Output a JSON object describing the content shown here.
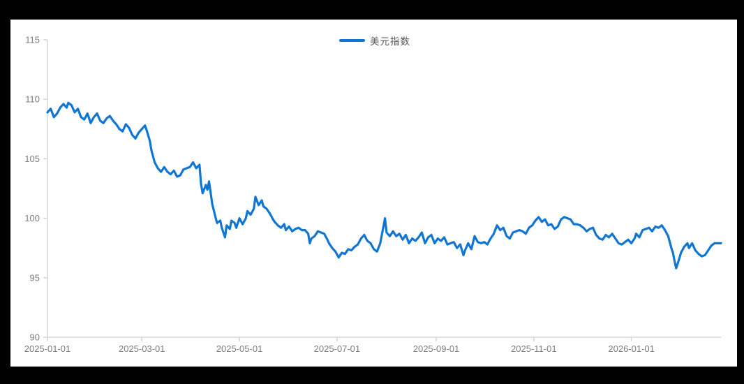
{
  "frame": {
    "background_color": "#000000",
    "panel_background": "#ffffff"
  },
  "chart_data": {
    "type": "line",
    "title": "",
    "legend": [
      {
        "label": "美元指数",
        "color": "#1175D2"
      }
    ],
    "legend_position": "top-center",
    "grid": false,
    "ylabel": "",
    "xlabel": "",
    "ylim": [
      90,
      115
    ],
    "y_ticks": [
      115,
      110,
      105,
      100,
      95,
      90
    ],
    "x_tick_labels": [
      "2025-01-01",
      "2025-03-01",
      "2025-05-01",
      "2025-07-01",
      "2025-09-01",
      "2025-11-01",
      "2026-01-01"
    ],
    "x_tick_days": [
      0,
      59,
      120,
      181,
      243,
      304,
      365
    ],
    "x_range_days": [
      0,
      421
    ],
    "x_unit": "days since 2025-01-01",
    "axis_color": "#d6d6d6",
    "tick_label_color": "#7d7d7d",
    "series": [
      {
        "name": "美元指数",
        "color": "#1175D2",
        "points": [
          [
            0,
            108.9
          ],
          [
            2,
            109.2
          ],
          [
            4,
            108.5
          ],
          [
            6,
            108.8
          ],
          [
            8,
            109.3
          ],
          [
            10,
            109.6
          ],
          [
            12,
            109.3
          ],
          [
            13,
            109.7
          ],
          [
            15,
            109.5
          ],
          [
            17,
            108.9
          ],
          [
            19,
            109.2
          ],
          [
            21,
            108.5
          ],
          [
            23,
            108.3
          ],
          [
            25,
            108.8
          ],
          [
            27,
            108.0
          ],
          [
            29,
            108.5
          ],
          [
            31,
            108.8
          ],
          [
            33,
            108.2
          ],
          [
            35,
            108.0
          ],
          [
            37,
            108.4
          ],
          [
            39,
            108.6
          ],
          [
            41,
            108.2
          ],
          [
            43,
            107.9
          ],
          [
            45,
            107.5
          ],
          [
            47,
            107.3
          ],
          [
            49,
            107.9
          ],
          [
            51,
            107.6
          ],
          [
            53,
            107.0
          ],
          [
            55,
            106.7
          ],
          [
            57,
            107.2
          ],
          [
            59,
            107.5
          ],
          [
            61,
            107.8
          ],
          [
            62,
            107.4
          ],
          [
            64,
            106.5
          ],
          [
            65,
            105.7
          ],
          [
            67,
            104.7
          ],
          [
            69,
            104.2
          ],
          [
            71,
            103.9
          ],
          [
            73,
            104.3
          ],
          [
            75,
            103.9
          ],
          [
            77,
            103.7
          ],
          [
            79,
            104.0
          ],
          [
            81,
            103.5
          ],
          [
            83,
            103.6
          ],
          [
            85,
            104.1
          ],
          [
            87,
            104.2
          ],
          [
            89,
            104.3
          ],
          [
            91,
            104.7
          ],
          [
            93,
            104.2
          ],
          [
            95,
            104.5
          ],
          [
            96,
            102.9
          ],
          [
            97,
            102.1
          ],
          [
            99,
            102.8
          ],
          [
            100,
            102.4
          ],
          [
            101,
            103.1
          ],
          [
            103,
            101.2
          ],
          [
            105,
            100.1
          ],
          [
            106,
            99.6
          ],
          [
            108,
            99.8
          ],
          [
            109,
            99.2
          ],
          [
            111,
            98.4
          ],
          [
            112,
            99.4
          ],
          [
            114,
            99.1
          ],
          [
            115,
            99.8
          ],
          [
            117,
            99.6
          ],
          [
            118,
            99.2
          ],
          [
            120,
            100.0
          ],
          [
            122,
            99.5
          ],
          [
            124,
            100.0
          ],
          [
            125,
            100.6
          ],
          [
            127,
            100.3
          ],
          [
            129,
            100.8
          ],
          [
            130,
            101.8
          ],
          [
            132,
            101.1
          ],
          [
            134,
            101.5
          ],
          [
            135,
            101.0
          ],
          [
            137,
            100.8
          ],
          [
            139,
            100.4
          ],
          [
            141,
            99.9
          ],
          [
            142,
            99.7
          ],
          [
            144,
            99.4
          ],
          [
            146,
            99.2
          ],
          [
            148,
            99.5
          ],
          [
            149,
            99.0
          ],
          [
            151,
            99.3
          ],
          [
            153,
            98.9
          ],
          [
            155,
            99.1
          ],
          [
            157,
            99.2
          ],
          [
            159,
            99.0
          ],
          [
            161,
            99.0
          ],
          [
            163,
            98.7
          ],
          [
            164,
            97.9
          ],
          [
            165,
            98.3
          ],
          [
            167,
            98.5
          ],
          [
            169,
            98.9
          ],
          [
            171,
            98.8
          ],
          [
            173,
            98.7
          ],
          [
            175,
            98.2
          ],
          [
            176,
            97.9
          ],
          [
            178,
            97.5
          ],
          [
            180,
            97.2
          ],
          [
            182,
            96.7
          ],
          [
            184,
            97.1
          ],
          [
            186,
            97.0
          ],
          [
            188,
            97.4
          ],
          [
            190,
            97.3
          ],
          [
            192,
            97.6
          ],
          [
            194,
            97.8
          ],
          [
            196,
            98.3
          ],
          [
            198,
            98.6
          ],
          [
            200,
            98.1
          ],
          [
            202,
            97.9
          ],
          [
            204,
            97.4
          ],
          [
            206,
            97.2
          ],
          [
            208,
            97.9
          ],
          [
            210,
            99.3
          ],
          [
            211,
            100.0
          ],
          [
            212,
            98.8
          ],
          [
            214,
            98.5
          ],
          [
            216,
            98.9
          ],
          [
            218,
            98.5
          ],
          [
            220,
            98.7
          ],
          [
            222,
            98.2
          ],
          [
            224,
            98.6
          ],
          [
            226,
            97.9
          ],
          [
            228,
            98.3
          ],
          [
            230,
            98.1
          ],
          [
            232,
            98.4
          ],
          [
            234,
            98.8
          ],
          [
            236,
            97.9
          ],
          [
            238,
            98.4
          ],
          [
            240,
            98.6
          ],
          [
            242,
            97.9
          ],
          [
            244,
            98.3
          ],
          [
            246,
            98.1
          ],
          [
            248,
            98.4
          ],
          [
            250,
            97.8
          ],
          [
            252,
            97.9
          ],
          [
            254,
            98.0
          ],
          [
            256,
            97.5
          ],
          [
            258,
            97.8
          ],
          [
            260,
            96.9
          ],
          [
            261,
            97.3
          ],
          [
            263,
            97.9
          ],
          [
            265,
            97.4
          ],
          [
            267,
            98.5
          ],
          [
            269,
            98.0
          ],
          [
            271,
            97.9
          ],
          [
            273,
            98.0
          ],
          [
            275,
            97.8
          ],
          [
            277,
            98.3
          ],
          [
            279,
            98.7
          ],
          [
            281,
            99.4
          ],
          [
            283,
            99.0
          ],
          [
            285,
            99.2
          ],
          [
            287,
            98.5
          ],
          [
            289,
            98.3
          ],
          [
            291,
            98.8
          ],
          [
            293,
            98.9
          ],
          [
            295,
            99.0
          ],
          [
            297,
            98.9
          ],
          [
            299,
            98.7
          ],
          [
            301,
            99.2
          ],
          [
            303,
            99.4
          ],
          [
            305,
            99.8
          ],
          [
            307,
            100.1
          ],
          [
            309,
            99.7
          ],
          [
            311,
            99.9
          ],
          [
            313,
            99.4
          ],
          [
            315,
            99.5
          ],
          [
            317,
            99.1
          ],
          [
            319,
            99.3
          ],
          [
            321,
            99.9
          ],
          [
            323,
            100.1
          ],
          [
            325,
            100.0
          ],
          [
            327,
            99.9
          ],
          [
            329,
            99.5
          ],
          [
            331,
            99.5
          ],
          [
            333,
            99.4
          ],
          [
            335,
            99.2
          ],
          [
            337,
            98.9
          ],
          [
            339,
            99.1
          ],
          [
            341,
            99.2
          ],
          [
            343,
            98.6
          ],
          [
            345,
            98.3
          ],
          [
            347,
            98.2
          ],
          [
            349,
            98.6
          ],
          [
            351,
            98.4
          ],
          [
            353,
            98.7
          ],
          [
            355,
            98.3
          ],
          [
            357,
            97.9
          ],
          [
            359,
            97.8
          ],
          [
            361,
            98.0
          ],
          [
            363,
            98.2
          ],
          [
            365,
            97.9
          ],
          [
            367,
            98.3
          ],
          [
            368,
            98.7
          ],
          [
            370,
            98.4
          ],
          [
            372,
            99.0
          ],
          [
            374,
            99.1
          ],
          [
            376,
            99.2
          ],
          [
            378,
            98.9
          ],
          [
            380,
            99.3
          ],
          [
            382,
            99.2
          ],
          [
            384,
            99.4
          ],
          [
            386,
            99.0
          ],
          [
            388,
            98.5
          ],
          [
            390,
            97.5
          ],
          [
            391,
            97.1
          ],
          [
            392,
            96.4
          ],
          [
            393,
            95.8
          ],
          [
            394,
            96.2
          ],
          [
            396,
            97.1
          ],
          [
            398,
            97.6
          ],
          [
            400,
            97.9
          ],
          [
            401,
            97.5
          ],
          [
            403,
            97.9
          ],
          [
            405,
            97.3
          ],
          [
            407,
            97.0
          ],
          [
            409,
            96.8
          ],
          [
            411,
            96.9
          ],
          [
            413,
            97.3
          ],
          [
            415,
            97.7
          ],
          [
            417,
            97.9
          ],
          [
            419,
            97.9
          ],
          [
            421,
            97.9
          ]
        ]
      }
    ]
  }
}
